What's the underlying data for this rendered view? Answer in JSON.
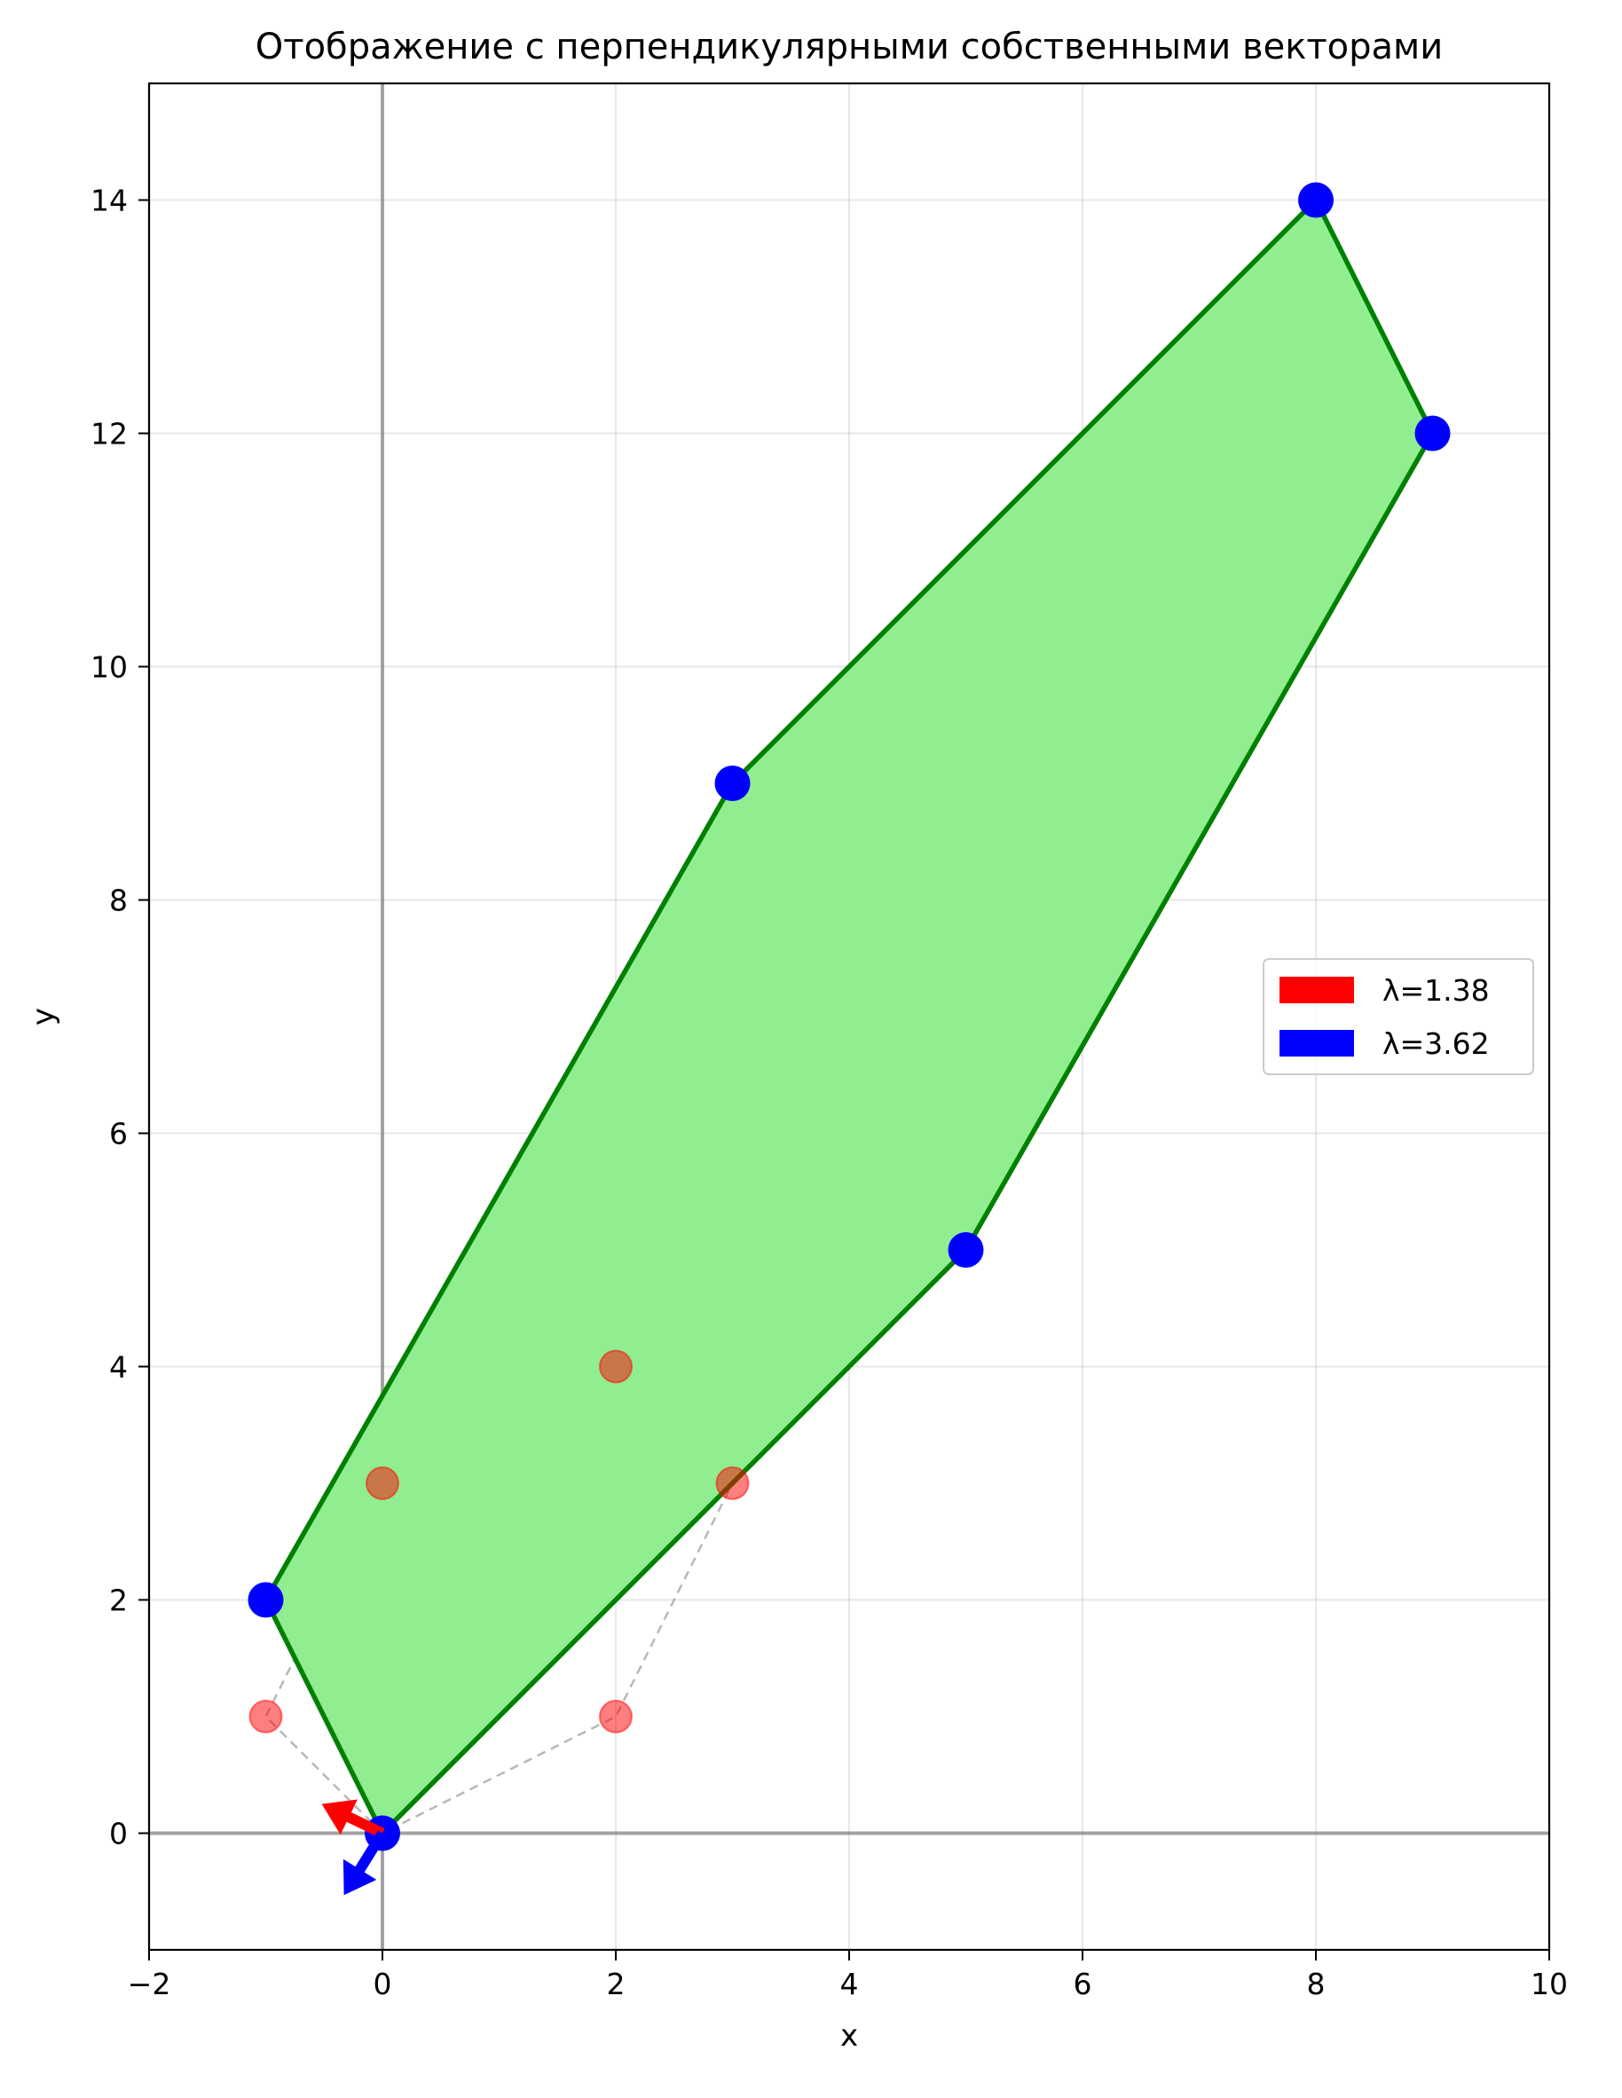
{
  "chart_data": {
    "type": "scatter",
    "title": "Отображение с перпендикулярными собственными векторами",
    "xlabel": "x",
    "ylabel": "y",
    "xlim": [
      -2,
      10
    ],
    "ylim": [
      -1,
      15
    ],
    "xticks": [
      -2,
      0,
      2,
      4,
      6,
      8,
      10
    ],
    "xtick_labels": [
      "−2",
      "0",
      "2",
      "4",
      "6",
      "8",
      "10"
    ],
    "yticks": [
      0,
      2,
      4,
      6,
      8,
      10,
      12,
      14
    ],
    "ytick_labels": [
      "0",
      "2",
      "4",
      "6",
      "8",
      "10",
      "12",
      "14"
    ],
    "grid": true,
    "legend_position": "center-right",
    "original_points": [
      [
        0,
        0
      ],
      [
        -1,
        1
      ],
      [
        0,
        3
      ],
      [
        2,
        4
      ],
      [
        3,
        3
      ],
      [
        2,
        1
      ]
    ],
    "transformed_points": [
      [
        0,
        0
      ],
      [
        -1,
        2
      ],
      [
        3,
        9
      ],
      [
        8,
        14
      ],
      [
        9,
        12
      ],
      [
        5,
        5
      ]
    ],
    "eigenvectors": [
      {
        "name": "λ=1.38",
        "lambda": 1.38,
        "direction": [
          -0.52,
          0.25
        ],
        "color": "#ff0000"
      },
      {
        "name": "λ=3.62",
        "lambda": 3.62,
        "direction": [
          -0.33,
          -0.53
        ],
        "color": "#0000ff"
      }
    ],
    "colors": {
      "fill": "#90ee90",
      "edge": "#008000",
      "original_points": "#ff0000",
      "transformed_points": "#0000ff",
      "original_outline": "#a0a0a0",
      "axes_lines": "#808080"
    }
  }
}
